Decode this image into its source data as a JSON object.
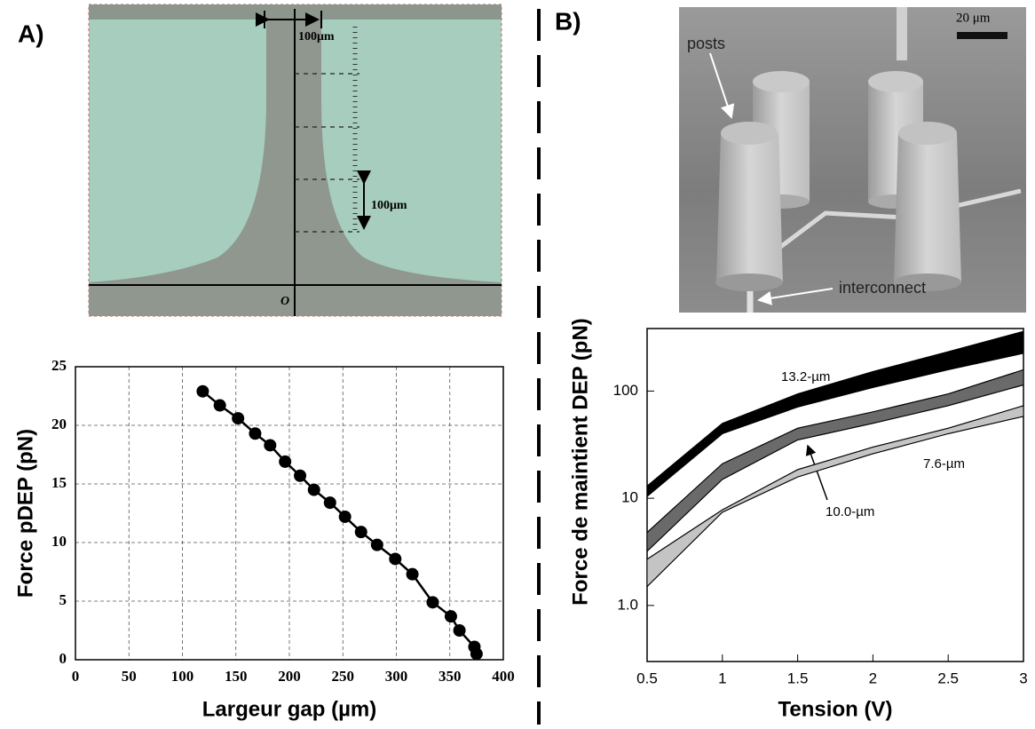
{
  "figure": {
    "panel_a_label": "A)",
    "panel_b_label": "B)",
    "image_a": {
      "scale_top": "100μm",
      "scale_side": "100μm",
      "origin": "O"
    },
    "image_b": {
      "scale_bar": "20 μm",
      "posts": "posts",
      "interconnect": "interconnect"
    }
  },
  "chart_data": [
    {
      "type": "line",
      "xlabel": "Largeur gap (µm)",
      "ylabel": "Force pDEP (pN)",
      "x": [
        119,
        135,
        152,
        168,
        182,
        196,
        210,
        223,
        238,
        252,
        267,
        282,
        299,
        315,
        334,
        351,
        359,
        373,
        375
      ],
      "values": [
        22.9,
        21.7,
        20.6,
        19.3,
        18.3,
        16.9,
        15.7,
        14.5,
        13.4,
        12.2,
        10.9,
        9.8,
        8.6,
        7.3,
        4.9,
        3.7,
        2.5,
        1.1,
        0.5
      ],
      "color": "#000000",
      "xlim": [
        0,
        400
      ],
      "xticks": [
        0,
        50,
        100,
        150,
        200,
        250,
        300,
        350,
        400
      ],
      "ylim": [
        0,
        25
      ],
      "yticks": [
        0,
        5,
        10,
        15,
        20,
        25
      ],
      "grid": true
    },
    {
      "type": "band",
      "xlabel": "Tension (V)",
      "ylabel": "Force de maintient DEP (pN)",
      "x": [
        0.5,
        1,
        1.5,
        2,
        2.5,
        3
      ],
      "series": [
        {
          "name": "13.2-µm",
          "color": "#000000",
          "upper": [
            13,
            50,
            94,
            152,
            233,
            360
          ],
          "lower": [
            10.4,
            40,
            71,
            108,
            158,
            225
          ]
        },
        {
          "name": "10.0-µm",
          "color": "#6a6a6a",
          "upper": [
            4.8,
            21,
            45,
            64,
            94,
            158
          ],
          "lower": [
            3.2,
            15,
            35,
            50,
            73,
            114
          ]
        },
        {
          "name": "7.6-µm",
          "color": "#c4c4c4",
          "upper": [
            2.7,
            7.8,
            18.5,
            30,
            45,
            73
          ],
          "lower": [
            1.5,
            7.4,
            15.8,
            26,
            40,
            58
          ]
        }
      ],
      "log_y": true,
      "xlim": [
        0.5,
        3
      ],
      "xticks": [
        0.5,
        1,
        1.5,
        2,
        2.5,
        3
      ],
      "ylim": [
        0.3,
        383
      ],
      "yticks": [
        {
          "value": 1,
          "label": "1.0"
        },
        10,
        100
      ],
      "grid": false
    }
  ]
}
